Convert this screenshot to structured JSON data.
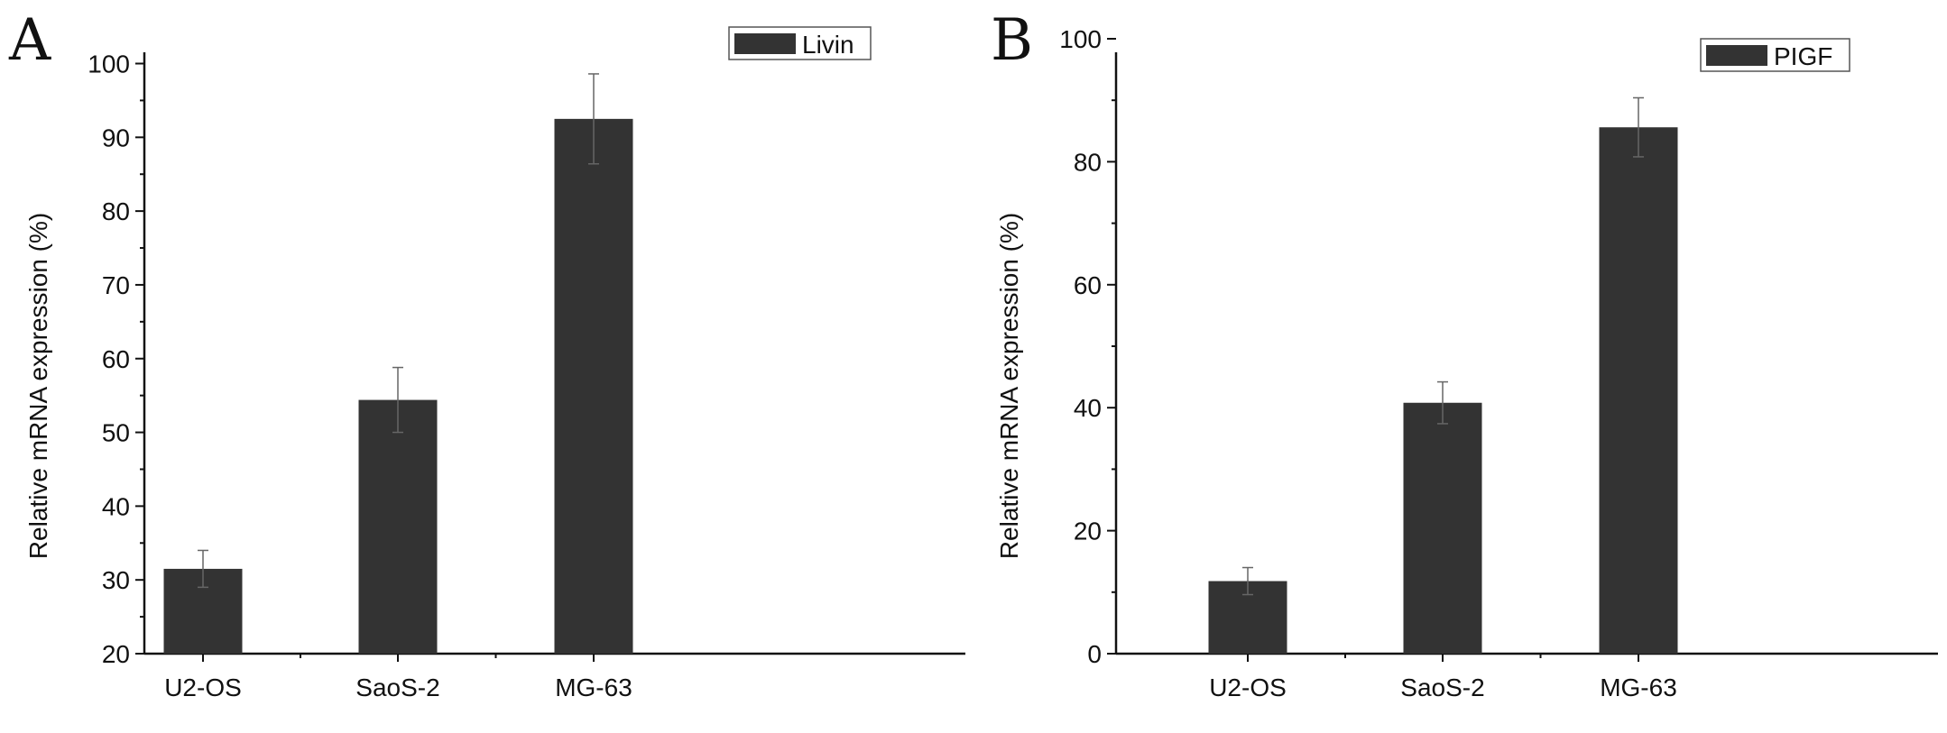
{
  "colors": {
    "bar": "#333333",
    "axis": "#111111",
    "error_bar": "#666666"
  },
  "chart_data": [
    {
      "panel_label": "A",
      "type": "bar",
      "categories": [
        "U2-OS",
        "SaoS-2",
        "MG-63"
      ],
      "series": [
        {
          "name": "Livin",
          "values": [
            31.5,
            54.4,
            92.5
          ],
          "errors": [
            2.5,
            4.4,
            6.1
          ]
        }
      ],
      "xlabel": "",
      "ylabel": "Relative mRNA expression (%)",
      "ylim": [
        20,
        105
      ],
      "yticks": [
        20,
        30,
        40,
        50,
        60,
        70,
        80,
        90,
        100
      ],
      "grid": false,
      "legend_position": "top-right"
    },
    {
      "panel_label": "B",
      "type": "bar",
      "categories": [
        "U2-OS",
        "SaoS-2",
        "MG-63"
      ],
      "series": [
        {
          "name": "PIGF",
          "values": [
            11.8,
            40.8,
            85.6
          ],
          "errors": [
            2.2,
            3.4,
            4.8
          ]
        }
      ],
      "xlabel": "",
      "ylabel": "Relative mRNA expression (%)",
      "ylim": [
        0,
        100
      ],
      "yticks": [
        0,
        20,
        40,
        60,
        80,
        100
      ],
      "grid": false,
      "legend_position": "top-right"
    }
  ]
}
